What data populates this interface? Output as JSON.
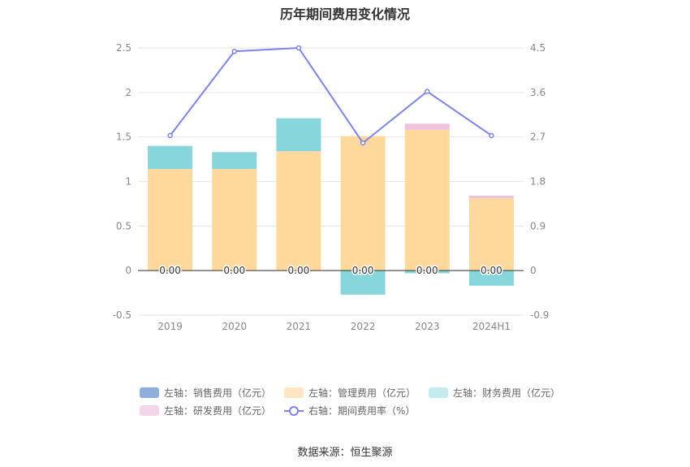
{
  "title": "历年期间费用变化情况",
  "source": "数据来源：恒生聚源",
  "chart_data": {
    "type": "bar",
    "stacked": true,
    "categories": [
      "2019",
      "2020",
      "2021",
      "2022",
      "2023",
      "2024H1"
    ],
    "left_axis": {
      "min": -0.5,
      "max": 2.5,
      "ticks": [
        "-0.5",
        "0",
        "0.5",
        "1",
        "1.5",
        "2",
        "2.5"
      ]
    },
    "right_axis": {
      "min": -0.9,
      "max": 4.5,
      "ticks": [
        "-0.9",
        "0",
        "0.9",
        "1.8",
        "2.7",
        "3.6",
        "4.5"
      ]
    },
    "series": [
      {
        "name": "左轴：销售费用（亿元）",
        "axis": "left",
        "color": "#8eaedd",
        "values": [
          0,
          0,
          0,
          0,
          0,
          0
        ]
      },
      {
        "name": "左轴：管理费用（亿元）",
        "axis": "left",
        "color": "#ffd99b",
        "values": [
          1.14,
          1.14,
          1.34,
          1.51,
          1.58,
          0.81
        ]
      },
      {
        "name": "左轴：财务费用（亿元）",
        "axis": "left",
        "color": "#86d6dc",
        "values": [
          0.26,
          0.19,
          0.37,
          -0.27,
          -0.03,
          -0.17
        ]
      },
      {
        "name": "左轴：研发费用（亿元）",
        "axis": "left",
        "color": "#efc2de",
        "values": [
          0,
          0,
          0,
          0,
          0.07,
          0.03
        ]
      },
      {
        "name": "右轴：期间费用率（%）",
        "axis": "right",
        "type": "line",
        "color": "#7b83f0",
        "values": [
          2.73,
          4.43,
          4.5,
          2.58,
          3.62,
          2.73
        ]
      }
    ],
    "data_labels": [
      "0.00",
      "0.00",
      "0.00",
      "0.00",
      "0.00",
      "0.00"
    ],
    "legend_swatch_colors": [
      "#8eaedd",
      "#ffe6c0",
      "#c3ecef",
      "#f4d6ea"
    ]
  }
}
